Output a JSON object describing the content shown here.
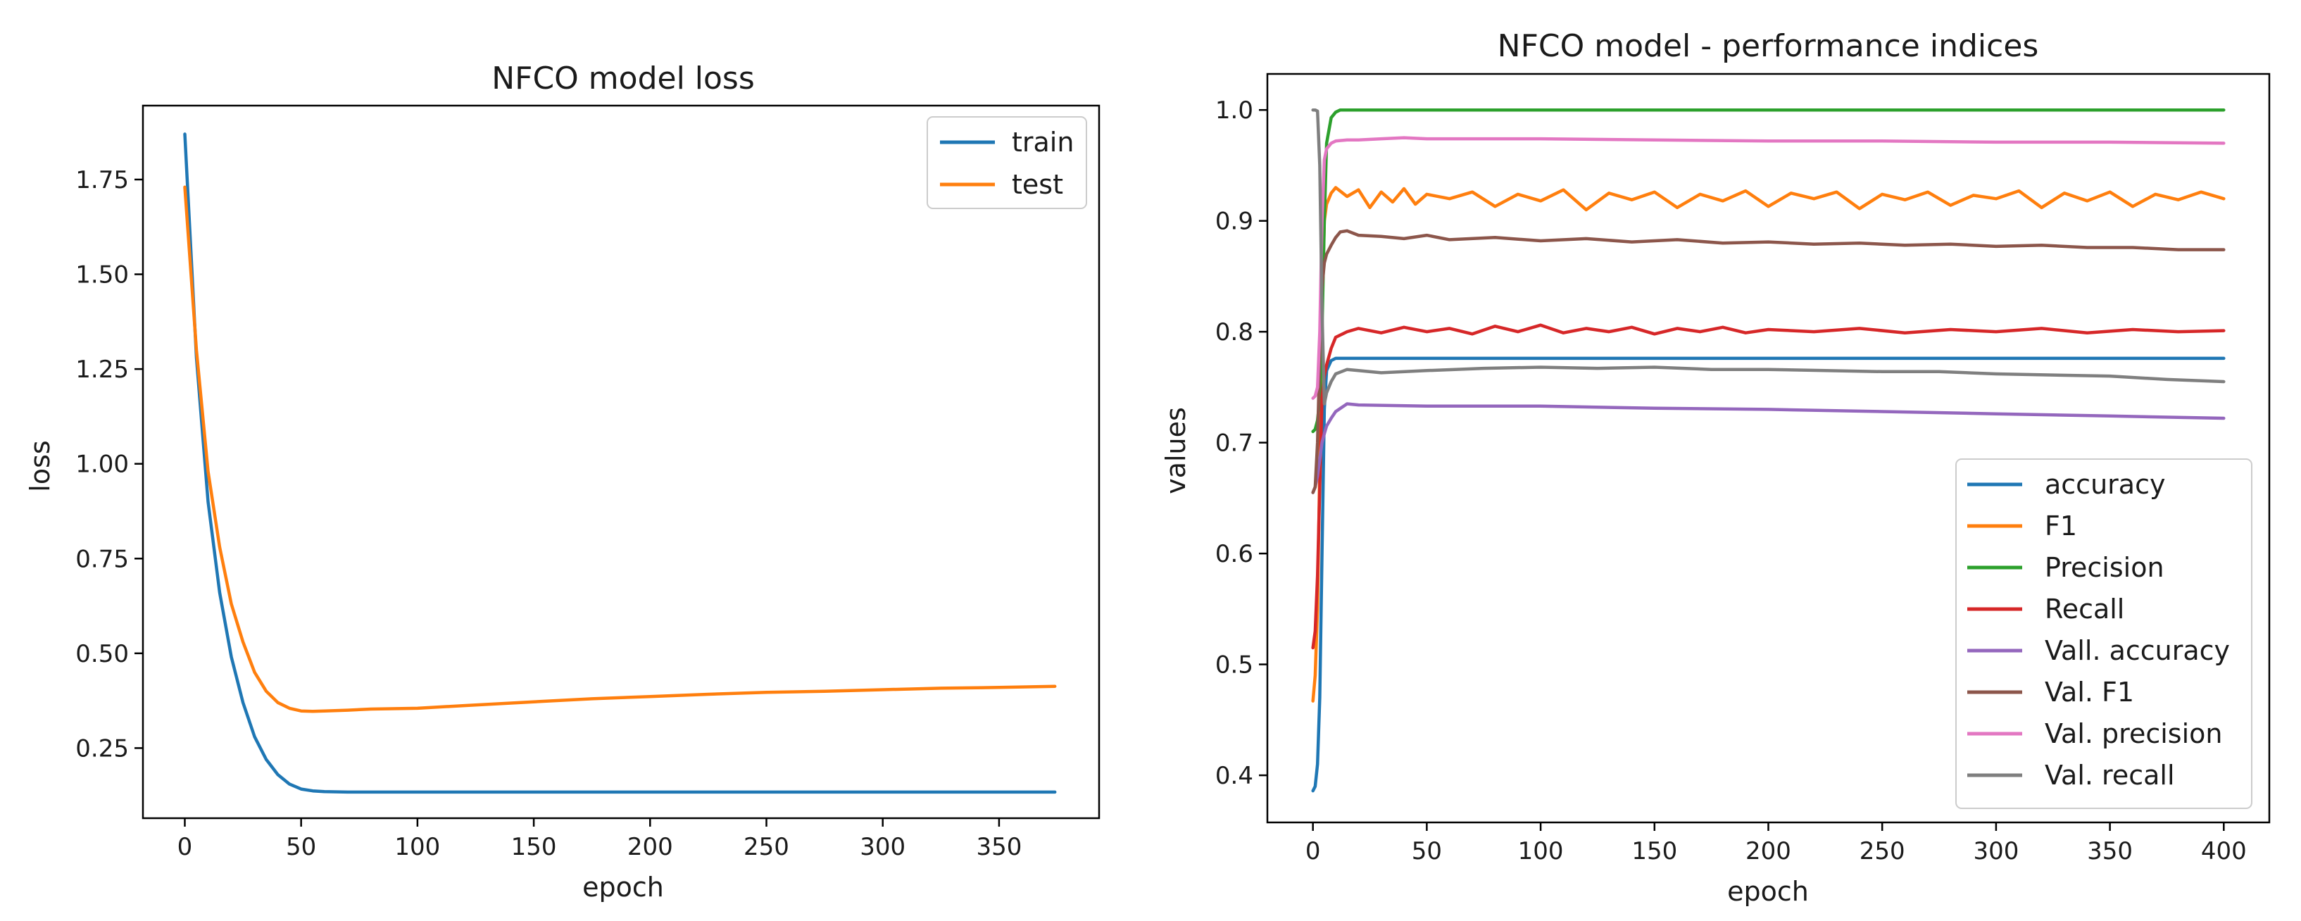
{
  "chart_data": [
    {
      "type": "line",
      "title": "NFCO model loss",
      "xlabel": "epoch",
      "ylabel": "loss",
      "xlim": [
        -18,
        393
      ],
      "ylim": [
        0.065,
        1.945
      ],
      "xticks": [
        0,
        50,
        100,
        150,
        200,
        250,
        300,
        350
      ],
      "xtick_labels": [
        "0",
        "50",
        "100",
        "150",
        "200",
        "250",
        "300",
        "350"
      ],
      "yticks": [
        0.25,
        0.5,
        0.75,
        1.0,
        1.25,
        1.5,
        1.75
      ],
      "ytick_labels": [
        "0.25",
        "0.50",
        "0.75",
        "1.00",
        "1.25",
        "1.50",
        "1.75"
      ],
      "legend_position": "top-right",
      "series": [
        {
          "name": "train",
          "color": "#1f77b4",
          "x": [
            0,
            5,
            10,
            15,
            20,
            25,
            30,
            35,
            40,
            45,
            50,
            55,
            60,
            70,
            80,
            100,
            150,
            200,
            250,
            300,
            350,
            374
          ],
          "y": [
            1.87,
            1.28,
            0.9,
            0.66,
            0.49,
            0.37,
            0.28,
            0.22,
            0.18,
            0.155,
            0.142,
            0.137,
            0.135,
            0.134,
            0.134,
            0.134,
            0.134,
            0.134,
            0.134,
            0.134,
            0.134,
            0.134
          ]
        },
        {
          "name": "test",
          "color": "#ff7f0e",
          "x": [
            0,
            5,
            10,
            15,
            20,
            25,
            30,
            35,
            40,
            45,
            50,
            55,
            60,
            70,
            80,
            100,
            120,
            150,
            175,
            200,
            225,
            250,
            275,
            300,
            325,
            350,
            374
          ],
          "y": [
            1.73,
            1.3,
            0.98,
            0.78,
            0.63,
            0.53,
            0.45,
            0.4,
            0.37,
            0.355,
            0.348,
            0.347,
            0.348,
            0.35,
            0.353,
            0.355,
            0.362,
            0.372,
            0.38,
            0.386,
            0.392,
            0.397,
            0.4,
            0.404,
            0.408,
            0.41,
            0.413
          ]
        }
      ]
    },
    {
      "type": "line",
      "title": "NFCO model  - performance indices",
      "xlabel": "epoch",
      "ylabel": "values",
      "xlim": [
        -20,
        420
      ],
      "ylim": [
        0.3575,
        1.0325
      ],
      "xticks": [
        0,
        50,
        100,
        150,
        200,
        250,
        300,
        350,
        400
      ],
      "xtick_labels": [
        "0",
        "50",
        "100",
        "150",
        "200",
        "250",
        "300",
        "350",
        "400"
      ],
      "yticks": [
        0.4,
        0.5,
        0.6,
        0.7,
        0.8,
        0.9,
        1.0
      ],
      "ytick_labels": [
        "0.4",
        "0.5",
        "0.6",
        "0.7",
        "0.8",
        "0.9",
        "1.0"
      ],
      "legend_position": "lower-right",
      "series": [
        {
          "name": "accuracy",
          "color": "#1f77b4",
          "x": [
            0,
            1,
            2,
            3,
            4,
            5,
            6,
            8,
            10,
            50,
            100,
            200,
            300,
            400
          ],
          "y": [
            0.386,
            0.39,
            0.41,
            0.47,
            0.6,
            0.73,
            0.765,
            0.774,
            0.776,
            0.776,
            0.776,
            0.776,
            0.776,
            0.776
          ]
        },
        {
          "name": "F1",
          "color": "#ff7f0e",
          "x": [
            0,
            1,
            2,
            3,
            4,
            5,
            6,
            8,
            10,
            15,
            20,
            25,
            30,
            35,
            40,
            45,
            50,
            60,
            70,
            80,
            90,
            100,
            110,
            120,
            130,
            140,
            150,
            160,
            170,
            180,
            190,
            200,
            210,
            220,
            230,
            240,
            250,
            260,
            270,
            280,
            290,
            300,
            310,
            320,
            330,
            340,
            350,
            360,
            370,
            380,
            390,
            400
          ],
          "y": [
            0.467,
            0.49,
            0.55,
            0.68,
            0.82,
            0.9,
            0.915,
            0.925,
            0.93,
            0.922,
            0.928,
            0.912,
            0.926,
            0.917,
            0.929,
            0.915,
            0.924,
            0.92,
            0.926,
            0.913,
            0.924,
            0.918,
            0.928,
            0.91,
            0.925,
            0.919,
            0.926,
            0.912,
            0.924,
            0.918,
            0.927,
            0.913,
            0.925,
            0.92,
            0.926,
            0.911,
            0.924,
            0.919,
            0.926,
            0.914,
            0.923,
            0.92,
            0.927,
            0.912,
            0.925,
            0.918,
            0.926,
            0.913,
            0.924,
            0.919,
            0.926,
            0.92
          ]
        },
        {
          "name": "Precision",
          "color": "#2ca02c",
          "x": [
            0,
            1,
            2,
            3,
            4,
            5,
            6,
            8,
            10,
            12,
            20,
            100,
            200,
            300,
            400
          ],
          "y": [
            0.71,
            0.712,
            0.72,
            0.74,
            0.8,
            0.9,
            0.97,
            0.993,
            0.998,
            1.0,
            1.0,
            1.0,
            1.0,
            1.0,
            1.0
          ]
        },
        {
          "name": "Recall",
          "color": "#d62728",
          "x": [
            0,
            1,
            2,
            3,
            4,
            5,
            6,
            8,
            10,
            15,
            20,
            30,
            40,
            50,
            60,
            70,
            80,
            90,
            100,
            110,
            120,
            130,
            140,
            150,
            160,
            170,
            180,
            190,
            200,
            220,
            240,
            260,
            280,
            300,
            320,
            340,
            360,
            380,
            400
          ],
          "y": [
            0.515,
            0.53,
            0.58,
            0.66,
            0.74,
            0.76,
            0.77,
            0.785,
            0.795,
            0.8,
            0.803,
            0.799,
            0.804,
            0.8,
            0.803,
            0.798,
            0.805,
            0.8,
            0.806,
            0.799,
            0.803,
            0.8,
            0.804,
            0.798,
            0.803,
            0.8,
            0.804,
            0.799,
            0.802,
            0.8,
            0.803,
            0.799,
            0.802,
            0.8,
            0.803,
            0.799,
            0.802,
            0.8,
            0.801
          ]
        },
        {
          "name": "Vall. accuracy",
          "color": "#9467bd",
          "x": [
            0,
            1,
            2,
            3,
            4,
            5,
            6,
            8,
            10,
            15,
            20,
            50,
            100,
            150,
            200,
            250,
            300,
            350,
            400
          ],
          "y": [
            0.655,
            0.66,
            0.67,
            0.685,
            0.7,
            0.708,
            0.715,
            0.722,
            0.728,
            0.735,
            0.734,
            0.733,
            0.733,
            0.731,
            0.73,
            0.728,
            0.726,
            0.724,
            0.722
          ]
        },
        {
          "name": "Val. F1",
          "color": "#8c564b",
          "x": [
            0,
            1,
            2,
            3,
            4,
            5,
            6,
            8,
            10,
            12,
            15,
            20,
            30,
            40,
            50,
            60,
            80,
            100,
            120,
            140,
            160,
            180,
            200,
            220,
            240,
            260,
            280,
            300,
            320,
            340,
            360,
            380,
            400
          ],
          "y": [
            0.655,
            0.66,
            0.7,
            0.78,
            0.84,
            0.862,
            0.87,
            0.878,
            0.885,
            0.89,
            0.891,
            0.887,
            0.886,
            0.884,
            0.887,
            0.883,
            0.885,
            0.882,
            0.884,
            0.881,
            0.883,
            0.88,
            0.881,
            0.879,
            0.88,
            0.878,
            0.879,
            0.877,
            0.878,
            0.876,
            0.876,
            0.874,
            0.874
          ]
        },
        {
          "name": "Val. precision",
          "color": "#e377c2",
          "x": [
            0,
            1,
            2,
            3,
            4,
            5,
            6,
            8,
            10,
            15,
            20,
            30,
            40,
            50,
            100,
            150,
            200,
            250,
            300,
            350,
            400
          ],
          "y": [
            0.74,
            0.742,
            0.75,
            0.8,
            0.9,
            0.955,
            0.965,
            0.97,
            0.972,
            0.973,
            0.973,
            0.974,
            0.975,
            0.974,
            0.974,
            0.973,
            0.972,
            0.972,
            0.971,
            0.971,
            0.97
          ]
        },
        {
          "name": "Val. recall",
          "color": "#7f7f7f",
          "x": [
            0,
            1,
            2,
            3,
            4,
            5,
            6,
            8,
            10,
            15,
            20,
            30,
            50,
            75,
            100,
            125,
            150,
            175,
            200,
            225,
            250,
            275,
            300,
            325,
            350,
            375,
            400
          ],
          "y": [
            1.0,
            1.0,
            0.999,
            0.95,
            0.82,
            0.735,
            0.745,
            0.755,
            0.762,
            0.766,
            0.765,
            0.763,
            0.765,
            0.767,
            0.768,
            0.767,
            0.768,
            0.766,
            0.766,
            0.765,
            0.764,
            0.764,
            0.762,
            0.761,
            0.76,
            0.757,
            0.755
          ]
        }
      ]
    }
  ]
}
